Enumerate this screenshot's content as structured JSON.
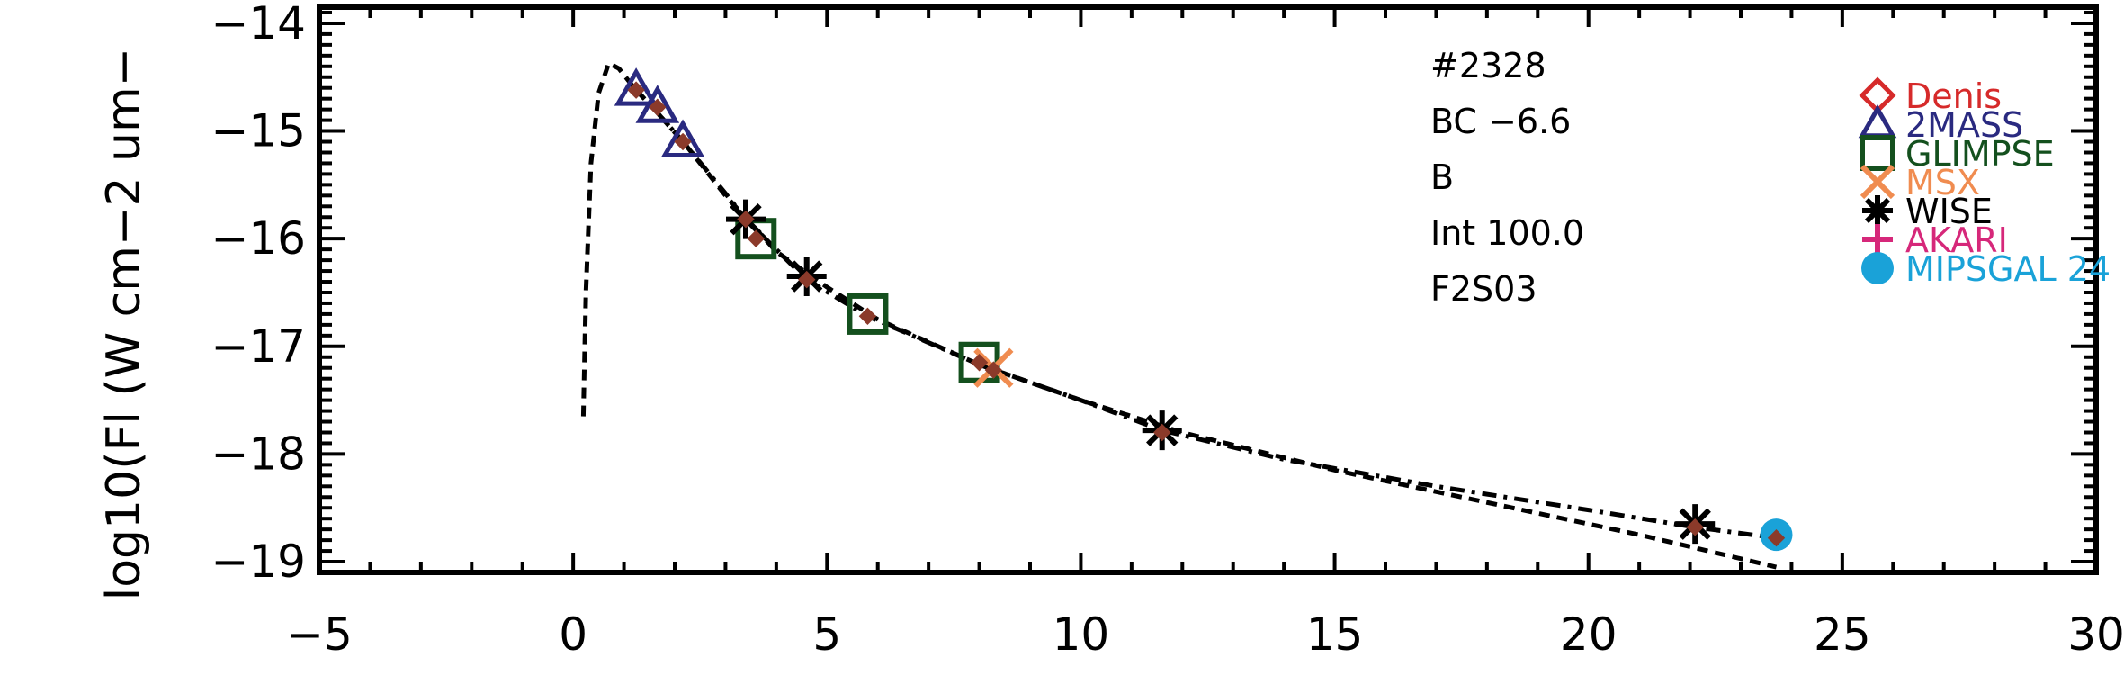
{
  "chart_data": {
    "type": "scatter",
    "title": "",
    "xlabel": "",
    "ylabel": "log10(Fl (W cm−2 um−",
    "xlim": [
      -5,
      30
    ],
    "ylim": [
      -19.1,
      -13.85
    ],
    "x_ticks": [
      -5,
      0,
      5,
      10,
      15,
      20,
      25,
      30
    ],
    "x_tick_labels": [
      "−5",
      "0",
      "5",
      "10",
      "15",
      "20",
      "25",
      "30"
    ],
    "y_ticks": [
      -14,
      -15,
      -16,
      -17,
      -18,
      -19
    ],
    "y_tick_labels": [
      "−14",
      "−15",
      "−16",
      "−17",
      "−18",
      "−19"
    ],
    "annotations": [
      "#2328",
      "BC −6.6",
      "B",
      "Int 100.0",
      "F2S03"
    ],
    "legend": [
      {
        "name": "Denis",
        "color": "#d62a2a",
        "marker": "diamond-open"
      },
      {
        "name": "2MASS",
        "color": "#2a2a80",
        "marker": "triangle-open"
      },
      {
        "name": "GLIMPSE",
        "color": "#14501e",
        "marker": "square-open"
      },
      {
        "name": "MSX",
        "color": "#f08c50",
        "marker": "x"
      },
      {
        "name": "WISE",
        "color": "#000000",
        "marker": "asterisk"
      },
      {
        "name": "AKARI",
        "color": "#d6287a",
        "marker": "plus"
      },
      {
        "name": "MIPSGAL 24",
        "color": "#1aa2d8",
        "marker": "filled-circle"
      }
    ],
    "series": [
      {
        "name": "2MASS",
        "x": [
          1.24,
          1.66,
          2.16
        ],
        "y": [
          -14.62,
          -14.78,
          -15.1
        ]
      },
      {
        "name": "GLIMPSE",
        "x": [
          3.6,
          5.8,
          8.0
        ],
        "y": [
          -16.0,
          -16.7,
          -17.15
        ]
      },
      {
        "name": "MSX",
        "x": [
          8.28
        ],
        "y": [
          -17.2
        ]
      },
      {
        "name": "WISE",
        "x": [
          3.4,
          4.6,
          11.6,
          22.1
        ],
        "y": [
          -15.82,
          -16.35,
          -17.78,
          -18.65
        ]
      },
      {
        "name": "MIPSGAL 24",
        "x": [
          23.7
        ],
        "y": [
          -18.75
        ]
      }
    ],
    "model_points": {
      "x": [
        1.24,
        1.66,
        2.16,
        3.4,
        3.6,
        4.6,
        5.8,
        8.0,
        8.28,
        11.6,
        22.1,
        23.7
      ],
      "y": [
        -14.62,
        -14.78,
        -15.1,
        -15.82,
        -16.0,
        -16.38,
        -16.72,
        -17.15,
        -17.22,
        -17.8,
        -18.68,
        -18.78
      ],
      "color": "#8b3a2a"
    },
    "lines": [
      {
        "style": "dashed",
        "x": [
          0.2,
          0.25,
          0.35,
          0.5,
          0.7,
          0.9,
          1.2,
          1.6,
          2.2,
          3.0,
          4.0,
          5.0,
          6.0,
          8.0,
          10.0,
          12.0,
          15.0,
          18.0,
          21.0,
          23.7
        ],
        "y": [
          -17.65,
          -16.5,
          -15.3,
          -14.65,
          -14.37,
          -14.42,
          -14.6,
          -14.8,
          -15.12,
          -15.6,
          -16.12,
          -16.45,
          -16.75,
          -17.17,
          -17.5,
          -17.8,
          -18.15,
          -18.45,
          -18.75,
          -19.05
        ]
      },
      {
        "style": "dashdot",
        "x": [
          1.2,
          1.6,
          2.2,
          3.0,
          3.4,
          4.6,
          5.8,
          8.0,
          10.0,
          11.6,
          14.0,
          17.0,
          20.0,
          22.1,
          23.7
        ],
        "y": [
          -14.6,
          -14.8,
          -15.12,
          -15.58,
          -15.82,
          -16.38,
          -16.72,
          -17.17,
          -17.5,
          -17.78,
          -18.05,
          -18.3,
          -18.52,
          -18.68,
          -18.78
        ]
      }
    ]
  }
}
